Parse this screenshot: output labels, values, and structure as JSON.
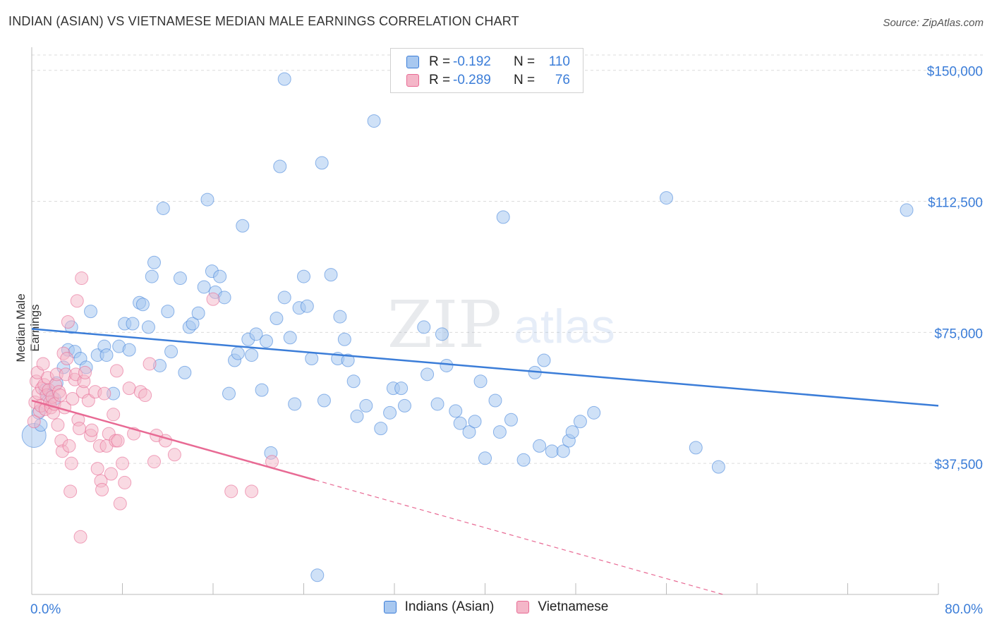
{
  "title": "INDIAN (ASIAN) VS VIETNAMESE MEDIAN MALE EARNINGS CORRELATION CHART",
  "source": "Source: ZipAtlas.com",
  "watermark": {
    "zip": "ZIP",
    "atlas": "atlas"
  },
  "legend": {
    "rows": [
      {
        "r_label": "R =",
        "r_value": "-0.192",
        "n_label": "N =",
        "n_value": "110",
        "color": "#a8c8f0"
      },
      {
        "r_label": "R =",
        "r_value": "-0.289",
        "n_label": "N =",
        "n_value": "76",
        "color": "#f4b6c8"
      }
    ]
  },
  "bottom_legend": [
    "Indians (Asian)",
    "Vietnamese"
  ],
  "chart_data": {
    "type": "scatter",
    "title": "INDIAN (ASIAN) VS VIETNAMESE MEDIAN MALE EARNINGS CORRELATION CHART",
    "xlabel": "",
    "ylabel": "Median Male Earnings",
    "xlim": [
      0,
      80
    ],
    "ylim": [
      0,
      156000
    ],
    "x_tick_labels": [
      "0.0%",
      "80.0%"
    ],
    "y_ticks": [
      37500,
      75000,
      112500,
      150000
    ],
    "y_tick_labels": [
      "$37,500",
      "$75,000",
      "$112,500",
      "$150,000"
    ],
    "grid": true,
    "legend_position": "top-center",
    "colors": {
      "indians": "#3b7dd8",
      "indians_fill": "#a8c8f0",
      "vietnamese": "#e86a94",
      "vietnamese_fill": "#f4b6c8"
    },
    "series": [
      {
        "name": "Indians (Asian)",
        "trend": {
          "x": [
            0,
            80
          ],
          "y": [
            76000,
            54000
          ],
          "solid_to": 80
        },
        "points": [
          [
            0.2,
            45500
          ],
          [
            0.6,
            52000
          ],
          [
            0.8,
            48500
          ],
          [
            1.2,
            58500
          ],
          [
            1.4,
            57000
          ],
          [
            2.0,
            56000
          ],
          [
            2.2,
            60500
          ],
          [
            2.8,
            65000
          ],
          [
            3.2,
            70000
          ],
          [
            3.5,
            76500
          ],
          [
            3.8,
            69500
          ],
          [
            4.3,
            67500
          ],
          [
            4.8,
            65000
          ],
          [
            5.2,
            81000
          ],
          [
            5.8,
            68500
          ],
          [
            6.4,
            71000
          ],
          [
            6.6,
            68500
          ],
          [
            7.2,
            57500
          ],
          [
            7.7,
            71000
          ],
          [
            8.2,
            77500
          ],
          [
            8.6,
            70000
          ],
          [
            8.9,
            77500
          ],
          [
            9.5,
            83500
          ],
          [
            9.8,
            83000
          ],
          [
            10.3,
            76500
          ],
          [
            10.6,
            91000
          ],
          [
            10.8,
            95000
          ],
          [
            11.3,
            65500
          ],
          [
            11.6,
            110500
          ],
          [
            12.0,
            81000
          ],
          [
            12.3,
            69500
          ],
          [
            13.1,
            90500
          ],
          [
            13.5,
            63500
          ],
          [
            13.9,
            76500
          ],
          [
            14.2,
            77500
          ],
          [
            14.7,
            80500
          ],
          [
            15.2,
            88000
          ],
          [
            15.5,
            113000
          ],
          [
            15.9,
            92500
          ],
          [
            16.2,
            86500
          ],
          [
            16.6,
            91000
          ],
          [
            17.0,
            85000
          ],
          [
            17.4,
            57500
          ],
          [
            17.9,
            67000
          ],
          [
            18.2,
            69000
          ],
          [
            18.6,
            105500
          ],
          [
            19.1,
            73000
          ],
          [
            19.4,
            68500
          ],
          [
            19.8,
            74500
          ],
          [
            20.3,
            58500
          ],
          [
            20.7,
            72500
          ],
          [
            21.1,
            40500
          ],
          [
            21.6,
            79000
          ],
          [
            21.9,
            122500
          ],
          [
            22.3,
            85000
          ],
          [
            22.8,
            73500
          ],
          [
            23.2,
            54500
          ],
          [
            23.6,
            82000
          ],
          [
            24.0,
            91000
          ],
          [
            24.3,
            82500
          ],
          [
            24.7,
            67500
          ],
          [
            25.2,
            5500
          ],
          [
            25.6,
            123500
          ],
          [
            25.8,
            55500
          ],
          [
            26.4,
            91500
          ],
          [
            27.0,
            67500
          ],
          [
            27.2,
            79500
          ],
          [
            27.6,
            73000
          ],
          [
            27.9,
            67000
          ],
          [
            28.4,
            61000
          ],
          [
            28.7,
            51000
          ],
          [
            29.5,
            54000
          ],
          [
            30.2,
            135500
          ],
          [
            30.8,
            47500
          ],
          [
            31.6,
            52000
          ],
          [
            31.9,
            59000
          ],
          [
            32.6,
            59000
          ],
          [
            32.9,
            54000
          ],
          [
            22.3,
            147500
          ],
          [
            34.6,
            76500
          ],
          [
            34.9,
            63000
          ],
          [
            35.8,
            54500
          ],
          [
            36.2,
            74500
          ],
          [
            36.6,
            65500
          ],
          [
            37.4,
            52500
          ],
          [
            37.8,
            49000
          ],
          [
            38.6,
            46500
          ],
          [
            39.1,
            49500
          ],
          [
            39.6,
            61000
          ],
          [
            40.0,
            39000
          ],
          [
            40.9,
            55500
          ],
          [
            41.3,
            46500
          ],
          [
            41.6,
            108000
          ],
          [
            42.3,
            50000
          ],
          [
            43.4,
            38500
          ],
          [
            44.4,
            63500
          ],
          [
            44.8,
            42500
          ],
          [
            45.2,
            67000
          ],
          [
            45.9,
            41000
          ],
          [
            46.9,
            41000
          ],
          [
            47.4,
            44000
          ],
          [
            47.7,
            46500
          ],
          [
            48.4,
            49500
          ],
          [
            49.6,
            52000
          ],
          [
            56.0,
            113500
          ],
          [
            58.6,
            42000
          ],
          [
            60.6,
            36500
          ],
          [
            77.2,
            110000
          ]
        ]
      },
      {
        "name": "Vietnamese",
        "trend": {
          "x": [
            0,
            61
          ],
          "y": [
            55500,
            0
          ],
          "solid_to": 25
        },
        "points": [
          [
            0.2,
            49500
          ],
          [
            0.3,
            55000
          ],
          [
            0.4,
            61000
          ],
          [
            0.5,
            63500
          ],
          [
            0.6,
            57500
          ],
          [
            0.7,
            52500
          ],
          [
            0.8,
            54000
          ],
          [
            0.9,
            59000
          ],
          [
            1.0,
            66000
          ],
          [
            1.1,
            60000
          ],
          [
            1.2,
            53000
          ],
          [
            1.3,
            57000
          ],
          [
            1.4,
            62000
          ],
          [
            1.5,
            58500
          ],
          [
            1.6,
            55000
          ],
          [
            1.7,
            53500
          ],
          [
            1.8,
            56500
          ],
          [
            1.9,
            52000
          ],
          [
            2.0,
            54500
          ],
          [
            2.1,
            60000
          ],
          [
            2.2,
            63000
          ],
          [
            2.3,
            48500
          ],
          [
            2.4,
            58000
          ],
          [
            2.5,
            57000
          ],
          [
            2.6,
            44000
          ],
          [
            2.7,
            41000
          ],
          [
            2.8,
            69000
          ],
          [
            2.9,
            53500
          ],
          [
            3.0,
            63000
          ],
          [
            3.1,
            67500
          ],
          [
            3.2,
            78000
          ],
          [
            3.3,
            42500
          ],
          [
            3.4,
            29500
          ],
          [
            3.5,
            37500
          ],
          [
            3.6,
            56000
          ],
          [
            3.8,
            61500
          ],
          [
            3.9,
            63000
          ],
          [
            4.0,
            84000
          ],
          [
            4.1,
            50000
          ],
          [
            4.2,
            47500
          ],
          [
            4.3,
            16500
          ],
          [
            4.4,
            90500
          ],
          [
            4.5,
            58000
          ],
          [
            4.6,
            61000
          ],
          [
            4.7,
            63500
          ],
          [
            5.0,
            55500
          ],
          [
            5.2,
            45500
          ],
          [
            5.3,
            47000
          ],
          [
            5.6,
            58000
          ],
          [
            5.8,
            36000
          ],
          [
            6.0,
            42500
          ],
          [
            6.1,
            32500
          ],
          [
            6.2,
            30000
          ],
          [
            6.4,
            57500
          ],
          [
            6.6,
            42500
          ],
          [
            6.8,
            46000
          ],
          [
            7.0,
            34500
          ],
          [
            7.2,
            51500
          ],
          [
            7.4,
            44000
          ],
          [
            7.5,
            64000
          ],
          [
            7.6,
            44000
          ],
          [
            7.8,
            26000
          ],
          [
            8.0,
            37500
          ],
          [
            8.2,
            32000
          ],
          [
            8.6,
            59000
          ],
          [
            9.0,
            46000
          ],
          [
            9.6,
            58000
          ],
          [
            10.0,
            57000
          ],
          [
            10.4,
            66000
          ],
          [
            10.8,
            38000
          ],
          [
            11.0,
            45500
          ],
          [
            11.8,
            44000
          ],
          [
            12.6,
            40000
          ],
          [
            16.0,
            84500
          ],
          [
            17.6,
            29500
          ],
          [
            19.4,
            29500
          ],
          [
            21.2,
            38000
          ]
        ]
      }
    ]
  }
}
